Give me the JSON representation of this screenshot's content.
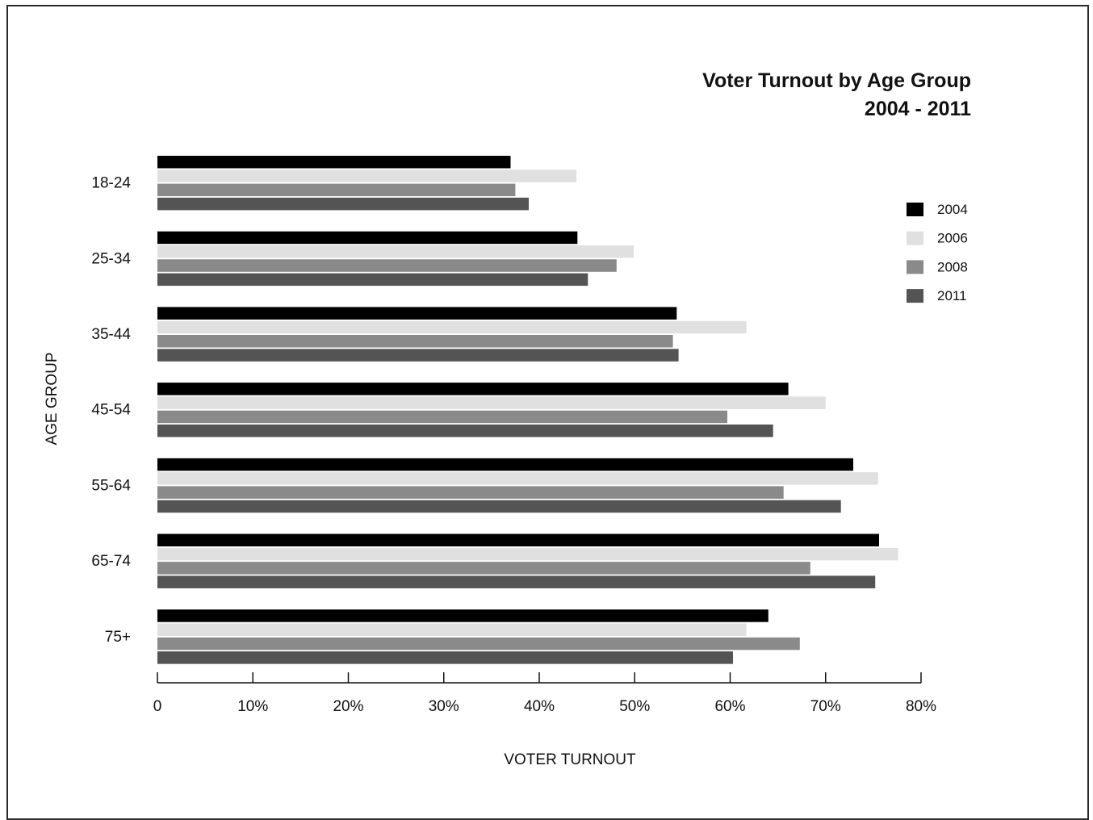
{
  "chart_data": {
    "type": "bar",
    "orientation": "horizontal",
    "title": "Voter Turnout by Age Group",
    "subtitle": "2004 - 2011",
    "xlabel": "VOTER TURNOUT",
    "ylabel": "AGE GROUP",
    "categories": [
      "18-24",
      "25-34",
      "35-44",
      "45-54",
      "55-64",
      "65-74",
      "75+"
    ],
    "xlim": [
      0,
      80
    ],
    "x_ticks": [
      "0",
      "10%",
      "20%",
      "30%",
      "40%",
      "50%",
      "60%",
      "70%",
      "80%"
    ],
    "grid": false,
    "legend_position": "right",
    "series": [
      {
        "name": "2004",
        "color": "#000000",
        "values": [
          37.0,
          44.0,
          54.4,
          66.1,
          72.9,
          75.6,
          64.0
        ]
      },
      {
        "name": "2006",
        "color": "#e0e0e0",
        "values": [
          43.9,
          49.9,
          61.7,
          70.0,
          75.5,
          77.6,
          61.7
        ]
      },
      {
        "name": "2008",
        "color": "#8a8a8a",
        "values": [
          37.5,
          48.1,
          54.0,
          59.7,
          65.6,
          68.4,
          67.3
        ]
      },
      {
        "name": "2011",
        "color": "#545454",
        "values": [
          38.9,
          45.1,
          54.6,
          64.5,
          71.6,
          75.2,
          60.3
        ]
      }
    ]
  }
}
